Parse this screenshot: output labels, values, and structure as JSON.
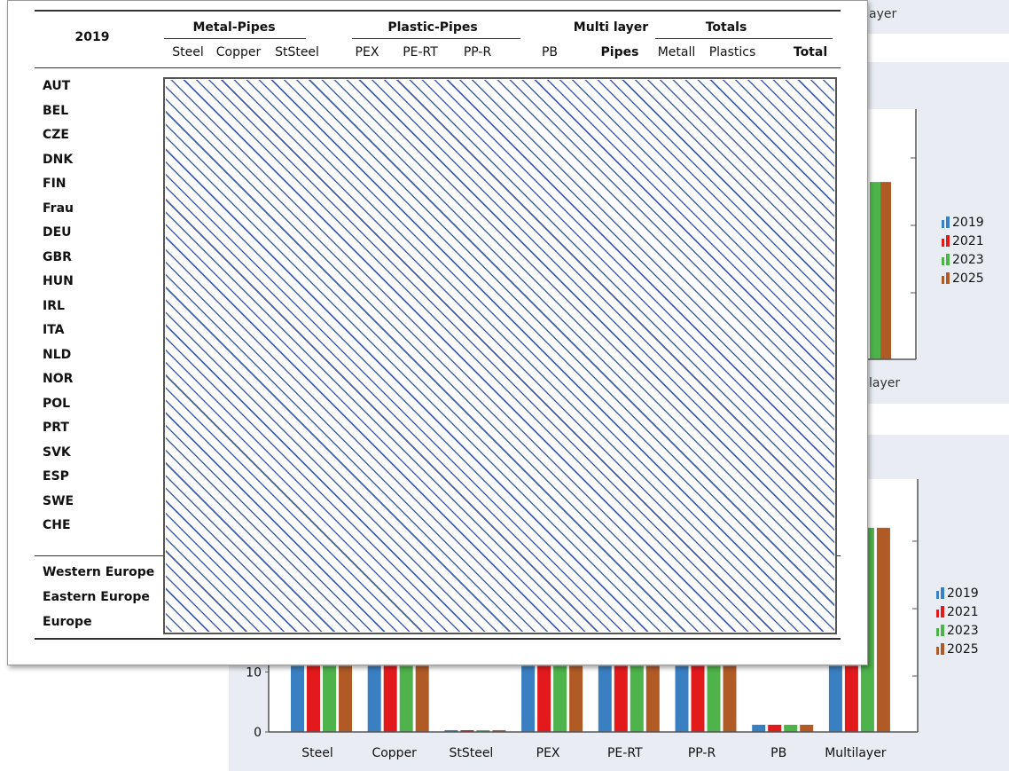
{
  "table": {
    "year": "2019",
    "groups": [
      {
        "label": "Metal-Pipes",
        "cx": 0
      },
      {
        "label": "Plastic-Pipes",
        "cx": 0
      },
      {
        "label": "Multi layer",
        "cx": 0
      },
      {
        "label": "Totals",
        "cx": 0
      }
    ],
    "columns": [
      "Steel",
      "Copper",
      "StSteel",
      "PEX",
      "PE-RT",
      "PP-R",
      "PB",
      "Pipes",
      "Metall",
      "Plastics",
      "Total"
    ],
    "rows": [
      "AUT",
      "BEL",
      "CZE",
      "DNK",
      "FIN",
      "Frau",
      "DEU",
      "GBR",
      "HUN",
      "IRL",
      "ITA",
      "NLD",
      "NOR",
      "POL",
      "PRT",
      "SVK",
      "ESP",
      "SWE",
      "CHE"
    ],
    "regions": [
      "Western Europe",
      "Eastern Europe",
      "Europe"
    ]
  },
  "fragments": {
    "top_right": "ayer",
    "mid_right": "layer"
  },
  "legend": {
    "items": [
      "2019",
      "2021",
      "2023",
      "2025"
    ],
    "colors": [
      "#3a7fc1",
      "#e31a1c",
      "#4db34a",
      "#b05a26"
    ]
  },
  "chart_data": [
    {
      "type": "bar",
      "title": "",
      "categories": [
        "Steel",
        "Copper",
        "StSteel",
        "PEX",
        "PE-RT",
        "PP-R",
        "PB",
        "Multilayer"
      ],
      "series": [
        {
          "name": "2019",
          "values": [
            null,
            null,
            null,
            null,
            null,
            null,
            null,
            70
          ]
        },
        {
          "name": "2021",
          "values": [
            null,
            null,
            null,
            null,
            null,
            null,
            null,
            70
          ]
        },
        {
          "name": "2023",
          "values": [
            null,
            null,
            null,
            null,
            null,
            null,
            null,
            70
          ]
        },
        {
          "name": "2025",
          "values": [
            null,
            null,
            null,
            null,
            null,
            null,
            null,
            70
          ]
        }
      ],
      "legend_position": "right"
    },
    {
      "type": "bar",
      "title": "",
      "categories": [
        "Steel",
        "Copper",
        "StSteel",
        "PEX",
        "PE-RT",
        "PP-R",
        "PB",
        "Multilayer"
      ],
      "series": [
        {
          "name": "2019",
          "values": [
            11,
            11,
            0.3,
            11,
            11,
            11,
            1.2,
            11
          ]
        },
        {
          "name": "2021",
          "values": [
            11,
            11,
            0.3,
            11,
            11,
            11,
            1.2,
            11
          ]
        },
        {
          "name": "2023",
          "values": [
            11,
            11,
            0.3,
            11,
            11,
            11,
            1.2,
            34
          ]
        },
        {
          "name": "2025",
          "values": [
            11,
            11,
            0.3,
            11,
            11,
            11,
            1.2,
            34
          ]
        }
      ],
      "yticks": [
        "0",
        "10"
      ],
      "ylim": [
        0,
        40
      ],
      "legend_position": "right"
    }
  ]
}
